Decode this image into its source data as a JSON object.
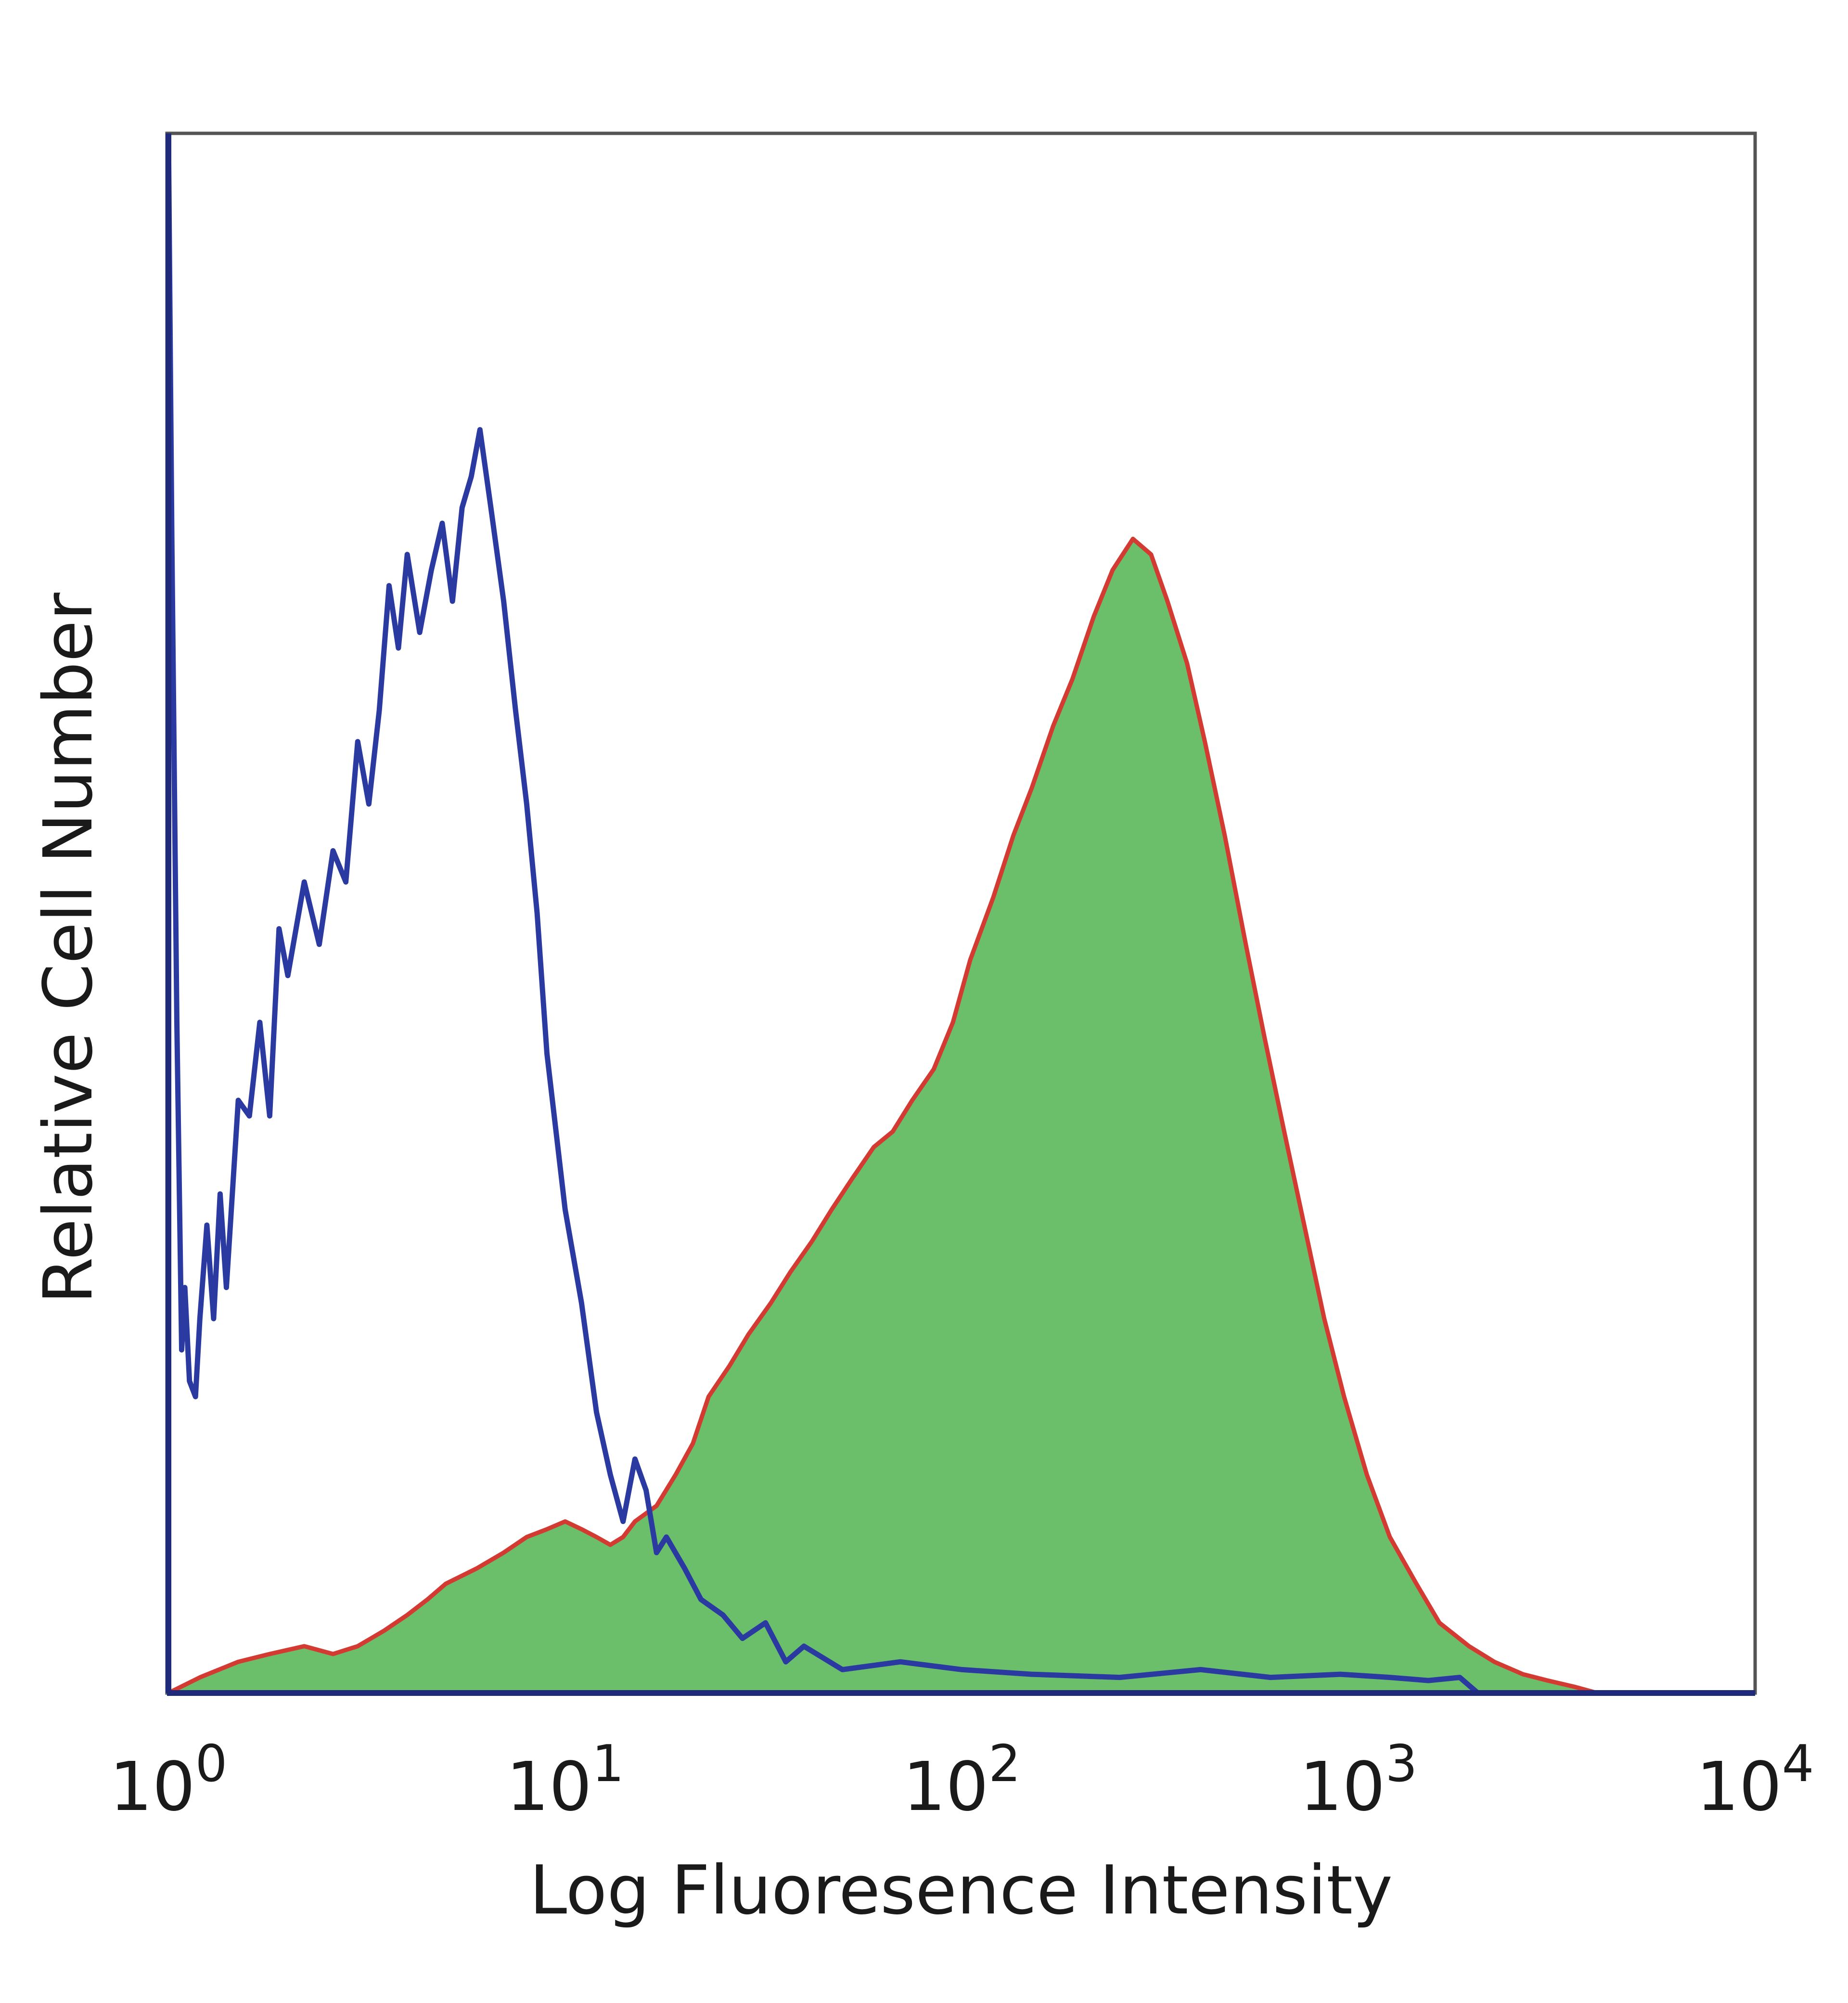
{
  "chart_data": {
    "type": "area",
    "xlabel": "Log Fluoresence Intensity",
    "ylabel": "Relative Cell Number",
    "x_scale": "log",
    "xlim": [
      1,
      10000
    ],
    "ylim": [
      0,
      100
    ],
    "x_ticks": [
      {
        "value": 1,
        "base": "10",
        "exp": "0"
      },
      {
        "value": 10,
        "base": "10",
        "exp": "1"
      },
      {
        "value": 100,
        "base": "10",
        "exp": "2"
      },
      {
        "value": 1000,
        "base": "10",
        "exp": "3"
      },
      {
        "value": 10000,
        "base": "10",
        "exp": "4"
      }
    ],
    "grid": false,
    "legend": "none",
    "series": [
      {
        "style": "outline",
        "color": "#2b3aa0",
        "x": [
          1.0,
          1.02,
          1.05,
          1.08,
          1.1,
          1.13,
          1.17,
          1.2,
          1.25,
          1.3,
          1.35,
          1.4,
          1.5,
          1.6,
          1.7,
          1.8,
          1.9,
          2.0,
          2.2,
          2.4,
          2.6,
          2.8,
          3.0,
          3.2,
          3.4,
          3.6,
          3.8,
          4.0,
          4.3,
          4.6,
          4.9,
          5.2,
          5.5,
          5.8,
          6.1,
          6.5,
          7.0,
          7.5,
          8.0,
          8.5,
          9.0,
          10.0,
          11.0,
          12.0,
          13.0,
          14.0,
          15.0,
          16.0,
          17.0,
          18.0,
          20.0,
          22.0,
          25.0,
          28.0,
          32.0,
          36.0,
          40.0,
          50.0,
          70.0,
          100.0,
          150.0,
          250.0,
          400.0,
          600.0,
          900.0,
          1200.0,
          1500.0,
          1800.0,
          2000.0
        ],
        "y": [
          100,
          74,
          43,
          22,
          26,
          20,
          19,
          24,
          30,
          24,
          32,
          26,
          38,
          37,
          43,
          37,
          49,
          46,
          52,
          48,
          54,
          52,
          61,
          57,
          63,
          71,
          67,
          73,
          68,
          72,
          75,
          70,
          76,
          78,
          81,
          76,
          70,
          63,
          57,
          50,
          41,
          31,
          25,
          18,
          14,
          11,
          15,
          13,
          9,
          10,
          8,
          6,
          5,
          3.5,
          4.5,
          2,
          3,
          1.5,
          2,
          1.5,
          1.2,
          1,
          1.5,
          1,
          1.2,
          1,
          0.8,
          1,
          0
        ]
      },
      {
        "style": "filled",
        "color": "#6bbf6a",
        "stroke": "#d23a32",
        "x": [
          1.0,
          1.2,
          1.5,
          1.8,
          2.2,
          2.6,
          3.0,
          3.5,
          4.0,
          4.5,
          5.0,
          6.0,
          7.0,
          8.0,
          9.0,
          10.0,
          11.0,
          12.0,
          13.0,
          14.0,
          15.0,
          17.0,
          19.0,
          21.0,
          23.0,
          26.0,
          29.0,
          33.0,
          37.0,
          42.0,
          47.0,
          53.0,
          60.0,
          67.0,
          75.0,
          85.0,
          95.0,
          105.0,
          120.0,
          135.0,
          150.0,
          170.0,
          190.0,
          215.0,
          240.0,
          270.0,
          300.0,
          330.0,
          370.0,
          410.0,
          460.0,
          520.0,
          580.0,
          650.0,
          730.0,
          820.0,
          920.0,
          1050.0,
          1200.0,
          1400.0,
          1600.0,
          1900.0,
          2200.0,
          2600.0,
          3000.0,
          3500.0,
          4000.0
        ],
        "y": [
          0,
          1,
          2,
          2.5,
          3,
          2.5,
          3,
          4,
          5,
          6,
          7,
          8,
          9,
          10,
          10.5,
          11,
          10.5,
          10,
          9.5,
          10,
          11,
          12,
          14,
          16,
          19,
          21,
          23,
          25,
          27,
          29,
          31,
          33,
          35,
          36,
          38,
          40,
          43,
          47,
          51,
          55,
          58,
          62,
          65,
          69,
          72,
          74,
          73,
          70,
          66,
          61,
          55,
          48,
          42,
          36,
          30,
          24,
          19,
          14,
          10,
          7,
          4.5,
          3,
          2,
          1.2,
          0.8,
          0.4,
          0
        ]
      }
    ]
  }
}
